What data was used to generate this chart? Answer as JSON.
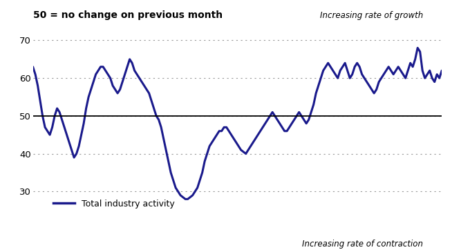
{
  "title": "50 = no change on previous month",
  "line_color": "#1a1a8c",
  "background_color": "#ffffff",
  "reference_line": 50,
  "ylim": [
    22,
    72
  ],
  "yticks": [
    30,
    40,
    50,
    60,
    70
  ],
  "grid_color": "#999999",
  "annotation_growth": "Increasing rate of growth",
  "annotation_contraction": "Increasing rate of contraction",
  "legend_label": "Total industry activity",
  "y_values": [
    63,
    61,
    58,
    54,
    50,
    47,
    46,
    45,
    47,
    50,
    52,
    51,
    49,
    47,
    45,
    43,
    41,
    39,
    40,
    42,
    45,
    48,
    52,
    55,
    57,
    59,
    61,
    62,
    63,
    63,
    62,
    61,
    60,
    58,
    57,
    56,
    57,
    59,
    61,
    63,
    65,
    64,
    62,
    61,
    60,
    59,
    58,
    57,
    56,
    54,
    52,
    50,
    49,
    47,
    44,
    41,
    38,
    35,
    33,
    31,
    30,
    29,
    28.5,
    28,
    28,
    28.5,
    29,
    30,
    31,
    33,
    35,
    38,
    40,
    42,
    43,
    44,
    45,
    46,
    46,
    47,
    47,
    46,
    45,
    44,
    43,
    42,
    41,
    40.5,
    40,
    41,
    42,
    43,
    44,
    45,
    46,
    47,
    48,
    49,
    50,
    51,
    50,
    49,
    48,
    47,
    46,
    46,
    47,
    48,
    49,
    50,
    51,
    50,
    49,
    48,
    49,
    51,
    53,
    56,
    58,
    60,
    62,
    63,
    64,
    63,
    62,
    61,
    60,
    62,
    63,
    64,
    62,
    60,
    61,
    63,
    64,
    63,
    61,
    60,
    59,
    58,
    57,
    56,
    57,
    59,
    60,
    61,
    62,
    63,
    62,
    61,
    62,
    63,
    62,
    61,
    60,
    62,
    64,
    63,
    65,
    68,
    67,
    62,
    60,
    61,
    62,
    60,
    59,
    61,
    60,
    62
  ]
}
